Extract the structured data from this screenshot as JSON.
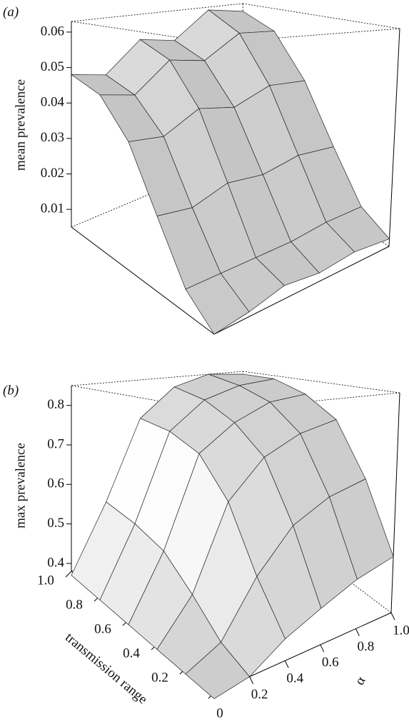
{
  "chart_data": [
    {
      "type": "surface",
      "panel": "(a)",
      "zlabel": "mean prevalence",
      "x": [
        0,
        0.2,
        0.4,
        0.6,
        0.8,
        1
      ],
      "y": [
        0,
        0.2,
        0.4,
        0.6,
        0.8,
        1
      ],
      "z": [
        [
          0.005,
          0.006,
          0.008,
          0.007,
          0.008,
          0.007
        ],
        [
          0.01,
          0.01,
          0.01,
          0.01,
          0.011,
          0.011
        ],
        [
          0.022,
          0.021,
          0.024,
          0.023,
          0.025,
          0.024
        ],
        [
          0.036,
          0.035,
          0.04,
          0.038,
          0.042,
          0.041
        ],
        [
          0.045,
          0.043,
          0.051,
          0.049,
          0.056,
          0.055
        ],
        [
          0.048,
          0.046,
          0.055,
          0.053,
          0.062,
          0.06
        ]
      ],
      "xlim": [
        0,
        1
      ],
      "ylim": [
        0,
        1
      ],
      "zlim": [
        0.005,
        0.063
      ],
      "zticks": [
        0.01,
        0.02,
        0.03,
        0.04,
        0.05,
        0.06
      ],
      "color": "#c8c8c8"
    },
    {
      "type": "surface",
      "panel": "(b)",
      "zlabel": "max prevalence",
      "xlabel": "transmission range",
      "ylabel": "α",
      "x": [
        0,
        0.2,
        0.4,
        0.6,
        0.8,
        1
      ],
      "y": [
        0,
        0.2,
        0.4,
        0.6,
        0.8,
        1
      ],
      "z": [
        [
          0.37,
          0.38,
          0.42,
          0.45,
          0.48,
          0.5
        ],
        [
          0.37,
          0.4,
          0.5,
          0.58,
          0.62,
          0.64
        ],
        [
          0.37,
          0.45,
          0.62,
          0.7,
          0.74,
          0.76
        ],
        [
          0.37,
          0.5,
          0.7,
          0.76,
          0.8,
          0.81
        ],
        [
          0.37,
          0.52,
          0.73,
          0.8,
          0.83,
          0.84
        ],
        [
          0.37,
          0.53,
          0.74,
          0.82,
          0.85,
          0.84
        ]
      ],
      "xlim": [
        0,
        1
      ],
      "ylim": [
        0,
        1
      ],
      "zlim": [
        0.38,
        0.85
      ],
      "xticks": [
        0,
        0.2,
        0.4,
        0.6,
        0.8,
        {
          "value": 1,
          "label": "1.0"
        }
      ],
      "yticks": [
        0.2,
        0.4,
        0.6,
        0.8,
        {
          "value": 1,
          "label": "1.0"
        }
      ],
      "zticks": [
        0.4,
        0.5,
        0.6,
        0.7,
        0.8
      ],
      "color": "#c8c8c8"
    }
  ]
}
